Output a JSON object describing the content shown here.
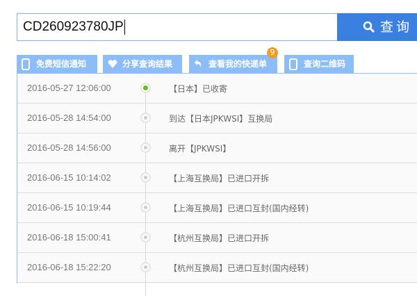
{
  "search": {
    "value": "CD260923780JP",
    "button_label": "查询"
  },
  "tabs": [
    {
      "label": "免费短信通知",
      "icon": "phone-icon"
    },
    {
      "label": "分享查询结果",
      "icon": "heart-icon"
    },
    {
      "label": "查看我的快递单",
      "icon": "reply-icon",
      "badge": "9"
    },
    {
      "label": "查询二维码",
      "icon": "phone-icon"
    }
  ],
  "colors": {
    "accent": "#3a80e0",
    "tab": "#8dbdf6",
    "badge": "#f39a2c",
    "current_dot": "#62c21a"
  },
  "events": [
    {
      "time": "2016-05-27 12:06:00",
      "desc": "【日本】已收寄"
    },
    {
      "time": "2016-05-28 14:54:00",
      "desc": "到达【日本JPKWSI】互换局"
    },
    {
      "time": "2016-05-28 14:56:00",
      "desc": "离开【JPKWSI】"
    },
    {
      "time": "2016-06-15 10:14:02",
      "desc": "【上海互换局】已进口开拆"
    },
    {
      "time": "2016-06-15 10:19:44",
      "desc": "【上海互换局】已进口互封(国内经转)"
    },
    {
      "time": "2016-06-18 15:00:41",
      "desc": "【杭州互换局】已进口开拆"
    },
    {
      "time": "2016-06-18 15:22:20",
      "desc": "【杭州互换局】已进口互封(国内经转)"
    }
  ]
}
